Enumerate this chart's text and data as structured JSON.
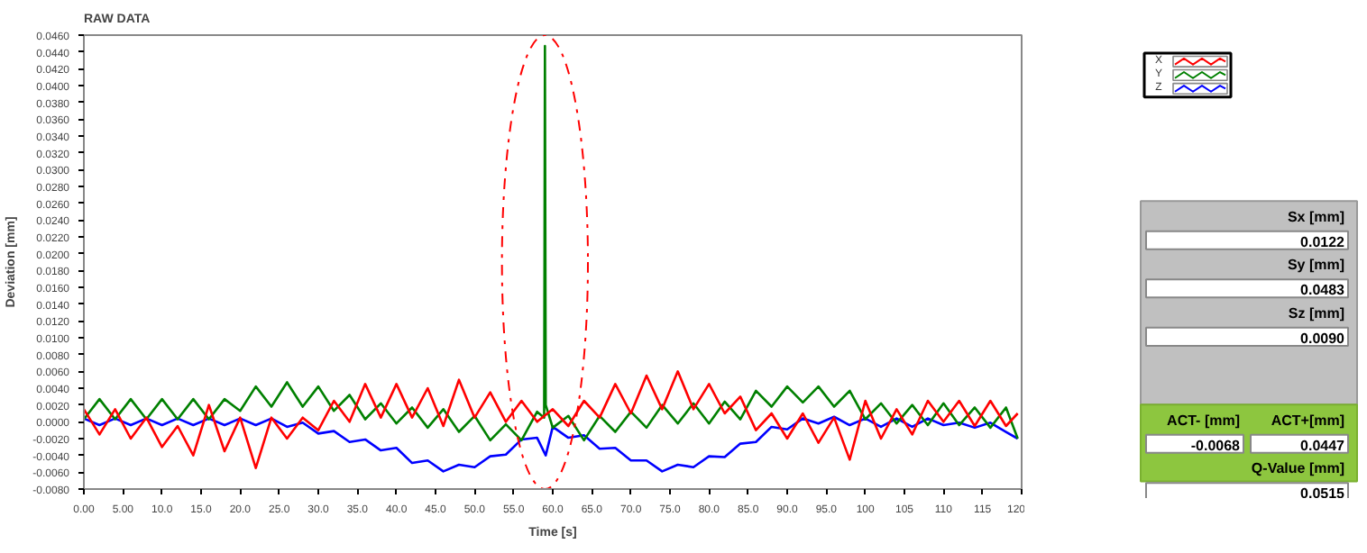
{
  "chart_data": [
    {
      "type": "line",
      "title": "RAW DATA",
      "xlabel": "Time [s]",
      "ylabel": "Deviation [mm]",
      "legend": "top right",
      "xlim": [
        0,
        120
      ],
      "ylim": [
        -0.008,
        0.046
      ],
      "xticks": [
        {
          "value": 0,
          "label": "0.00"
        },
        {
          "value": 5,
          "label": "5.00"
        },
        {
          "value": 10,
          "label": "10.0"
        },
        {
          "value": 15,
          "label": "15.0"
        },
        {
          "value": 20,
          "label": "20.0"
        },
        {
          "value": 25,
          "label": "25.0"
        },
        {
          "value": 30,
          "label": "30.0"
        },
        {
          "value": 35,
          "label": "35.0"
        },
        {
          "value": 40,
          "label": "40.0"
        },
        {
          "value": 45,
          "label": "45.0"
        },
        {
          "value": 50,
          "label": "50.0"
        },
        {
          "value": 55,
          "label": "55.0"
        },
        {
          "value": 60,
          "label": "60.0"
        },
        {
          "value": 65,
          "label": "65.0"
        },
        {
          "value": 70,
          "label": "70.0"
        },
        {
          "value": 75,
          "label": "75.0"
        },
        {
          "value": 80,
          "label": "80.0"
        },
        {
          "value": 85,
          "label": "85.0"
        },
        {
          "value": 90,
          "label": "90.0"
        },
        {
          "value": 95,
          "label": "95.0"
        },
        100,
        105,
        110,
        115,
        120
      ],
      "yticks": [
        {
          "value": -0.008,
          "label": "-0.0080"
        },
        {
          "value": -0.006,
          "label": "-0.0060"
        },
        {
          "value": -0.004,
          "label": "-0.0040"
        },
        {
          "value": -0.002,
          "label": "-0.0020"
        },
        {
          "value": 0,
          "label": "0.0000"
        },
        {
          "value": 0.002,
          "label": "0.0020"
        },
        {
          "value": 0.004,
          "label": "0.0040"
        },
        {
          "value": 0.006,
          "label": "0.0060"
        },
        {
          "value": 0.008,
          "label": "0.0080"
        },
        {
          "value": 0.01,
          "label": "0.0100"
        },
        {
          "value": 0.012,
          "label": "0.0120"
        },
        {
          "value": 0.014,
          "label": "0.0140"
        },
        {
          "value": 0.016,
          "label": "0.0160"
        },
        {
          "value": 0.018,
          "label": "0.0180"
        },
        {
          "value": 0.02,
          "label": "0.0200"
        },
        {
          "value": 0.022,
          "label": "0.0220"
        },
        {
          "value": 0.024,
          "label": "0.0240"
        },
        {
          "value": 0.026,
          "label": "0.0260"
        },
        {
          "value": 0.028,
          "label": "0.0280"
        },
        {
          "value": 0.03,
          "label": "0.0300"
        },
        {
          "value": 0.032,
          "label": "0.0320"
        },
        {
          "value": 0.034,
          "label": "0.0340"
        },
        {
          "value": 0.036,
          "label": "0.0360"
        },
        {
          "value": 0.038,
          "label": "0.0380"
        },
        {
          "value": 0.04,
          "label": "0.0400"
        },
        {
          "value": 0.042,
          "label": "0.0420"
        },
        {
          "value": 0.044,
          "label": "0.0440"
        },
        {
          "value": 0.046,
          "label": "0.0460"
        }
      ],
      "x": [
        0,
        2,
        4,
        6,
        8,
        10,
        12,
        14,
        16,
        18,
        20,
        22,
        24,
        26,
        28,
        30,
        32,
        34,
        36,
        38,
        40,
        42,
        44,
        46,
        48,
        50,
        52,
        54,
        56,
        58,
        60,
        62,
        64,
        66,
        68,
        70,
        72,
        74,
        76,
        78,
        80,
        82,
        84,
        86,
        88,
        90,
        92,
        94,
        96,
        98,
        100,
        102,
        104,
        106,
        108,
        110,
        112,
        114,
        116,
        118,
        119.5
      ],
      "series": [
        {
          "name": "Z",
          "color": "#0000ff",
          "x": [
            0,
            2,
            4,
            6,
            8,
            10,
            12,
            14,
            16,
            18,
            20,
            22,
            24,
            26,
            28,
            30,
            32,
            34,
            36,
            38,
            40,
            42,
            44,
            46,
            48,
            50,
            52,
            54,
            56,
            58,
            59.1,
            60,
            62,
            64,
            66,
            68,
            70,
            72,
            74,
            76,
            78,
            80,
            82,
            84,
            86,
            88,
            90,
            92,
            94,
            96,
            98,
            100,
            102,
            104,
            106,
            108,
            110,
            112,
            114,
            116,
            118,
            119.5
          ],
          "values": [
            0.0004,
            -0.0004,
            0.0004,
            -0.0004,
            0.0004,
            -0.0004,
            0.0004,
            -0.0004,
            0.0004,
            -0.0004,
            0.0004,
            -0.0004,
            0.0004,
            -0.0006,
            -0.0001,
            -0.0014,
            -0.0011,
            -0.0024,
            -0.0021,
            -0.0034,
            -0.0031,
            -0.0049,
            -0.0046,
            -0.0059,
            -0.0051,
            -0.0054,
            -0.0041,
            -0.0039,
            -0.0021,
            -0.0019,
            -0.004,
            -0.0006,
            -0.0019,
            -0.0016,
            -0.0032,
            -0.0031,
            -0.0046,
            -0.0046,
            -0.0059,
            -0.0051,
            -0.0054,
            -0.0041,
            -0.0042,
            -0.0026,
            -0.0024,
            -0.0006,
            -0.0009,
            0.0004,
            -0.0002,
            0.0006,
            -0.0004,
            0.0004,
            -0.0006,
            0.0004,
            -0.0006,
            0.0004,
            -0.0004,
            -0.0001,
            -0.0007,
            -0.0001,
            -0.0012,
            -0.002
          ]
        },
        {
          "name": "Y",
          "color": "#008000",
          "x": [
            0,
            2,
            4,
            6,
            8,
            10,
            12,
            14,
            16,
            18,
            20,
            22,
            24,
            26,
            28,
            30,
            32,
            34,
            36,
            38,
            40,
            42,
            44,
            46,
            48,
            50,
            52,
            54,
            56,
            58,
            58.9,
            59,
            59.1,
            60,
            62,
            64,
            66,
            68,
            70,
            72,
            74,
            76,
            78,
            80,
            82,
            84,
            86,
            88,
            90,
            92,
            94,
            96,
            98,
            100,
            102,
            104,
            106,
            108,
            110,
            112,
            114,
            116,
            118,
            119.5
          ],
          "values": [
            0.0003,
            0.0027,
            0.0003,
            0.0027,
            0.0003,
            0.0027,
            0.0003,
            0.0027,
            0.0003,
            0.0027,
            0.0013,
            0.0042,
            0.0018,
            0.0047,
            0.0018,
            0.0042,
            0.0013,
            0.0032,
            0.0003,
            0.0022,
            -0.0002,
            0.0017,
            -0.0007,
            0.0015,
            -0.0012,
            0.0007,
            -0.0022,
            -0.0003,
            -0.0022,
            0.0012,
            0.0005,
            0.0447,
            0.002,
            -0.0007,
            0.0007,
            -0.0022,
            0.0007,
            -0.0012,
            0.0012,
            -0.0007,
            0.002,
            -0.0002,
            0.0022,
            -0.0002,
            0.0024,
            0.0003,
            0.0037,
            0.0018,
            0.0042,
            0.0023,
            0.0042,
            0.0018,
            0.0037,
            0.0003,
            0.0022,
            -0.0002,
            0.002,
            -0.0004,
            0.0022,
            -0.0004,
            0.0017,
            -0.0007,
            0.0017,
            -0.002
          ]
        },
        {
          "name": "X",
          "color": "#ff0000",
          "values": [
            0.0015,
            -0.0015,
            0.0015,
            -0.002,
            0.0005,
            -0.003,
            -0.0005,
            -0.004,
            0.002,
            -0.0035,
            0.0005,
            -0.0055,
            0.0005,
            -0.002,
            0.0005,
            -0.001,
            0.0025,
            0,
            0.0045,
            0.0005,
            0.0045,
            0.0005,
            0.004,
            -0.0005,
            0.005,
            0.0005,
            0.0035,
            0,
            0.0025,
            0,
            0.0015,
            -0.0005,
            0.0025,
            0.0005,
            0.0045,
            0.001,
            0.0055,
            0.0015,
            0.006,
            0.0015,
            0.0045,
            0.001,
            0.003,
            -0.001,
            0.001,
            -0.002,
            0.001,
            -0.0025,
            0.0005,
            -0.0045,
            0.0025,
            -0.002,
            0.0015,
            -0.0015,
            0.0025,
            0,
            0.0025,
            -0.0005,
            0.0025,
            -0.0005,
            0.001
          ]
        }
      ]
    },
    {
      "type": "other",
      "annotations": [
        "Sx [mm]",
        "0.0122",
        "Sy [mm]",
        "0.0483",
        "Sz [mm]",
        "0.0090",
        "ACT- [mm]",
        "ACT+[mm]",
        "-0.0068",
        "0.0447",
        "Q-Value [mm]",
        "0.0515"
      ]
    }
  ]
}
